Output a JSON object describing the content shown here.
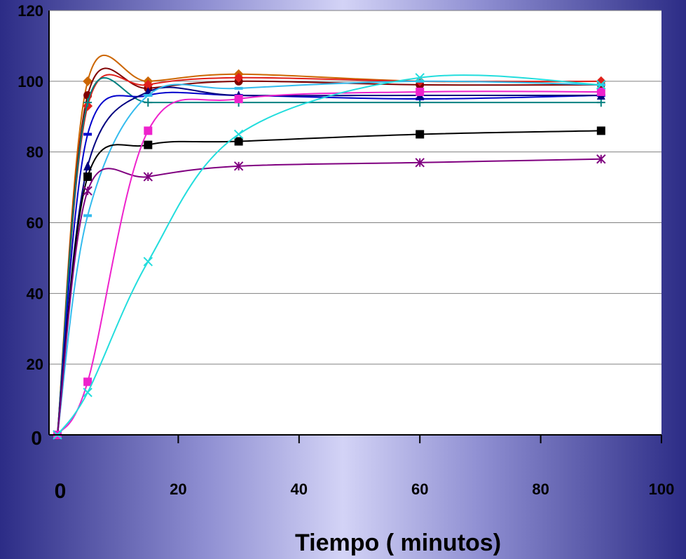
{
  "chart_data": {
    "type": "line",
    "title": "",
    "xlabel": "Tiempo ( minutos)",
    "ylabel": "",
    "xlim": [
      0,
      100
    ],
    "ylim": [
      0,
      120
    ],
    "x_ticks": [
      "0",
      "20",
      "40",
      "60",
      "80",
      "100"
    ],
    "y_ticks": [
      "0",
      "20",
      "40",
      "60",
      "80",
      "100",
      "120"
    ],
    "grid": "horizontal",
    "legend": "none",
    "x": [
      0,
      5,
      15,
      30,
      60,
      90
    ],
    "series": [
      {
        "color": "#cc6600",
        "marker": "diamond",
        "values": [
          0,
          100,
          100,
          102,
          100,
          100
        ]
      },
      {
        "color": "#800000",
        "marker": "circle",
        "values": [
          0,
          96,
          98,
          100,
          99,
          99
        ]
      },
      {
        "color": "#e0201c",
        "marker": "diamond",
        "values": [
          0,
          93,
          99,
          101,
          100,
          100
        ]
      },
      {
        "color": "#008080",
        "marker": "plus",
        "values": [
          0,
          94,
          94,
          94,
          94,
          94
        ]
      },
      {
        "color": "#0000cc",
        "marker": "dash",
        "values": [
          0,
          85,
          96,
          96,
          95,
          96
        ]
      },
      {
        "color": "#000080",
        "marker": "triangle",
        "values": [
          0,
          76,
          97,
          96,
          96,
          96
        ]
      },
      {
        "color": "#33bbee",
        "marker": "dash",
        "values": [
          0,
          62,
          96,
          98,
          100,
          99
        ]
      },
      {
        "color": "#000000",
        "marker": "square",
        "values": [
          0,
          73,
          82,
          83,
          85,
          86
        ]
      },
      {
        "color": "#800080",
        "marker": "asterisk",
        "values": [
          0,
          69,
          73,
          76,
          77,
          78
        ]
      },
      {
        "color": "#ee22cc",
        "marker": "square",
        "values": [
          0,
          15,
          86,
          95,
          97,
          97
        ]
      },
      {
        "color": "#22dddd",
        "marker": "x",
        "values": [
          0,
          12,
          49,
          85,
          101,
          99
        ]
      }
    ]
  }
}
